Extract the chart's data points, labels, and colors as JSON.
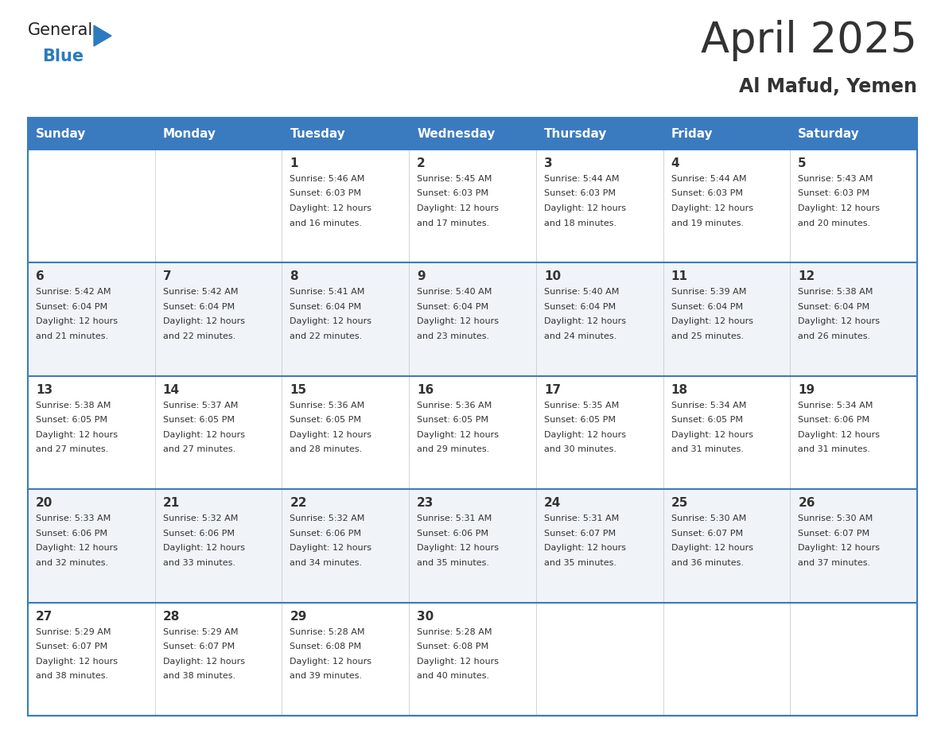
{
  "title": "April 2025",
  "subtitle": "Al Mafud, Yemen",
  "header_bg_color": "#3a7bbf",
  "header_text_color": "#ffffff",
  "border_color": "#3a7bbf",
  "row_border_color": "#3a7bbf",
  "text_color": "#333333",
  "cell_bg_even": "#ffffff",
  "cell_bg_odd": "#f0f4f8",
  "days_of_week": [
    "Sunday",
    "Monday",
    "Tuesday",
    "Wednesday",
    "Thursday",
    "Friday",
    "Saturday"
  ],
  "calendar_data": [
    [
      {
        "day": "",
        "sunrise": "",
        "sunset": "",
        "daylight": ""
      },
      {
        "day": "",
        "sunrise": "",
        "sunset": "",
        "daylight": ""
      },
      {
        "day": "1",
        "sunrise": "5:46 AM",
        "sunset": "6:03 PM",
        "daylight": "12 hours and 16 minutes."
      },
      {
        "day": "2",
        "sunrise": "5:45 AM",
        "sunset": "6:03 PM",
        "daylight": "12 hours and 17 minutes."
      },
      {
        "day": "3",
        "sunrise": "5:44 AM",
        "sunset": "6:03 PM",
        "daylight": "12 hours and 18 minutes."
      },
      {
        "day": "4",
        "sunrise": "5:44 AM",
        "sunset": "6:03 PM",
        "daylight": "12 hours and 19 minutes."
      },
      {
        "day": "5",
        "sunrise": "5:43 AM",
        "sunset": "6:03 PM",
        "daylight": "12 hours and 20 minutes."
      }
    ],
    [
      {
        "day": "6",
        "sunrise": "5:42 AM",
        "sunset": "6:04 PM",
        "daylight": "12 hours and 21 minutes."
      },
      {
        "day": "7",
        "sunrise": "5:42 AM",
        "sunset": "6:04 PM",
        "daylight": "12 hours and 22 minutes."
      },
      {
        "day": "8",
        "sunrise": "5:41 AM",
        "sunset": "6:04 PM",
        "daylight": "12 hours and 22 minutes."
      },
      {
        "day": "9",
        "sunrise": "5:40 AM",
        "sunset": "6:04 PM",
        "daylight": "12 hours and 23 minutes."
      },
      {
        "day": "10",
        "sunrise": "5:40 AM",
        "sunset": "6:04 PM",
        "daylight": "12 hours and 24 minutes."
      },
      {
        "day": "11",
        "sunrise": "5:39 AM",
        "sunset": "6:04 PM",
        "daylight": "12 hours and 25 minutes."
      },
      {
        "day": "12",
        "sunrise": "5:38 AM",
        "sunset": "6:04 PM",
        "daylight": "12 hours and 26 minutes."
      }
    ],
    [
      {
        "day": "13",
        "sunrise": "5:38 AM",
        "sunset": "6:05 PM",
        "daylight": "12 hours and 27 minutes."
      },
      {
        "day": "14",
        "sunrise": "5:37 AM",
        "sunset": "6:05 PM",
        "daylight": "12 hours and 27 minutes."
      },
      {
        "day": "15",
        "sunrise": "5:36 AM",
        "sunset": "6:05 PM",
        "daylight": "12 hours and 28 minutes."
      },
      {
        "day": "16",
        "sunrise": "5:36 AM",
        "sunset": "6:05 PM",
        "daylight": "12 hours and 29 minutes."
      },
      {
        "day": "17",
        "sunrise": "5:35 AM",
        "sunset": "6:05 PM",
        "daylight": "12 hours and 30 minutes."
      },
      {
        "day": "18",
        "sunrise": "5:34 AM",
        "sunset": "6:05 PM",
        "daylight": "12 hours and 31 minutes."
      },
      {
        "day": "19",
        "sunrise": "5:34 AM",
        "sunset": "6:06 PM",
        "daylight": "12 hours and 31 minutes."
      }
    ],
    [
      {
        "day": "20",
        "sunrise": "5:33 AM",
        "sunset": "6:06 PM",
        "daylight": "12 hours and 32 minutes."
      },
      {
        "day": "21",
        "sunrise": "5:32 AM",
        "sunset": "6:06 PM",
        "daylight": "12 hours and 33 minutes."
      },
      {
        "day": "22",
        "sunrise": "5:32 AM",
        "sunset": "6:06 PM",
        "daylight": "12 hours and 34 minutes."
      },
      {
        "day": "23",
        "sunrise": "5:31 AM",
        "sunset": "6:06 PM",
        "daylight": "12 hours and 35 minutes."
      },
      {
        "day": "24",
        "sunrise": "5:31 AM",
        "sunset": "6:07 PM",
        "daylight": "12 hours and 35 minutes."
      },
      {
        "day": "25",
        "sunrise": "5:30 AM",
        "sunset": "6:07 PM",
        "daylight": "12 hours and 36 minutes."
      },
      {
        "day": "26",
        "sunrise": "5:30 AM",
        "sunset": "6:07 PM",
        "daylight": "12 hours and 37 minutes."
      }
    ],
    [
      {
        "day": "27",
        "sunrise": "5:29 AM",
        "sunset": "6:07 PM",
        "daylight": "12 hours and 38 minutes."
      },
      {
        "day": "28",
        "sunrise": "5:29 AM",
        "sunset": "6:07 PM",
        "daylight": "12 hours and 38 minutes."
      },
      {
        "day": "29",
        "sunrise": "5:28 AM",
        "sunset": "6:08 PM",
        "daylight": "12 hours and 39 minutes."
      },
      {
        "day": "30",
        "sunrise": "5:28 AM",
        "sunset": "6:08 PM",
        "daylight": "12 hours and 40 minutes."
      },
      {
        "day": "",
        "sunrise": "",
        "sunset": "",
        "daylight": ""
      },
      {
        "day": "",
        "sunrise": "",
        "sunset": "",
        "daylight": ""
      },
      {
        "day": "",
        "sunrise": "",
        "sunset": "",
        "daylight": ""
      }
    ]
  ],
  "logo_text1": "General",
  "logo_text2": "Blue",
  "logo_text1_color": "#222222",
  "logo_text2_color": "#2a7bbf",
  "logo_triangle_color": "#2a7bbf",
  "title_fontsize": 38,
  "subtitle_fontsize": 17,
  "header_fontsize": 11,
  "day_num_fontsize": 11,
  "cell_text_fontsize": 8
}
